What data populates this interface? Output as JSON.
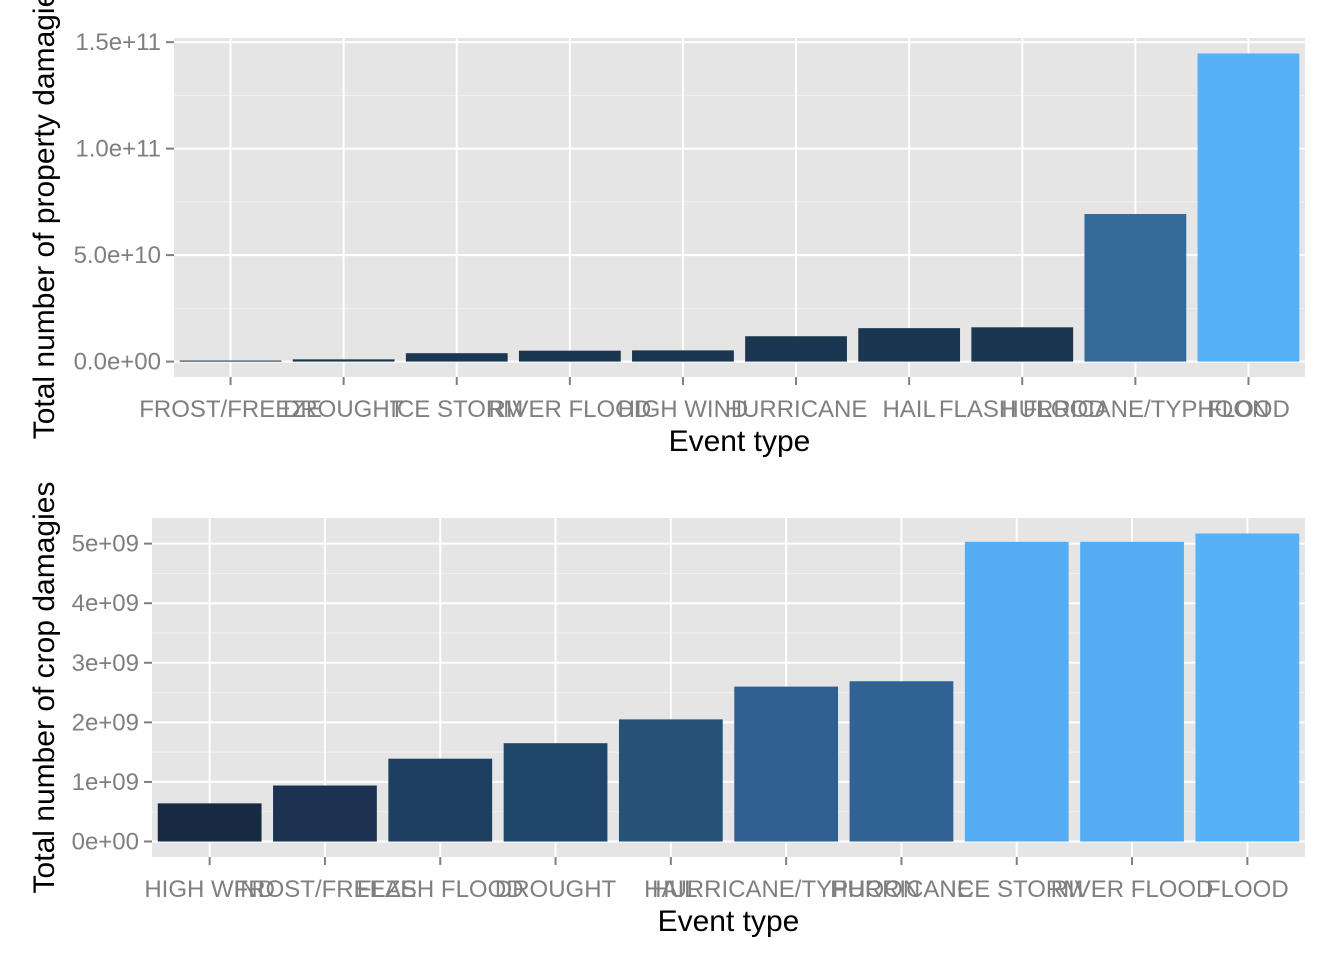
{
  "chart_data": [
    {
      "type": "bar",
      "title": "",
      "xlabel": "Event type",
      "ylabel": "Total number of property damagies",
      "categories": [
        "FROST/FREEZE",
        "DROUGHT",
        "ICE STORM",
        "RIVER FLOOD",
        "HIGH WIND",
        "HURRICANE",
        "HAIL",
        "FLASH FLOOD",
        "HURRICANE/TYPHOON",
        "FLOOD"
      ],
      "values": [
        10000000,
        1050000000,
        3940000000,
        5120000000,
        5270000000,
        11900000000,
        15700000000,
        16100000000,
        69300000000,
        144700000000
      ],
      "colors": [
        "#132B43",
        "#1B3651",
        "#1B3651",
        "#1B3651",
        "#1B3651",
        "#1B3651",
        "#1B3651",
        "#1B3651",
        "#336A98",
        "#56B1F7"
      ],
      "yticks": [
        "0.0e+00",
        "5.0e+10",
        "1.0e+11",
        "1.5e+11"
      ],
      "ytick_values": [
        0,
        50000000000,
        100000000000,
        150000000000
      ],
      "ylim": [
        -7240000000,
        151960000000
      ],
      "grid": true,
      "legend": "none"
    },
    {
      "type": "bar",
      "title": "",
      "xlabel": "Event type",
      "ylabel": "Total number of crop damagies",
      "categories": [
        "HIGH WIND",
        "FROST/FREEZE",
        "FLASH FLOOD",
        "DROUGHT",
        "HAIL",
        "HURRICANE/TYPHOON",
        "HURRICANE",
        "ICE STORM",
        "RIVER FLOOD",
        "FLOOD"
      ],
      "values": [
        640000000,
        940000000,
        1390000000,
        1650000000,
        2050000000,
        2600000000,
        2690000000,
        5030000000,
        5030000000,
        5170000000
      ],
      "colors": [
        "#182A42",
        "#1B3250",
        "#1F3F60",
        "#204669",
        "#265278",
        "#2F6091",
        "#306394",
        "#56ACF0",
        "#56ACF0",
        "#56B1F7"
      ],
      "yticks": [
        "0e+00",
        "1e+09",
        "2e+09",
        "3e+09",
        "4e+09",
        "5e+09"
      ],
      "ytick_values": [
        0,
        1000000000,
        2000000000,
        3000000000,
        4000000000,
        5000000000
      ],
      "ylim": [
        -260000000,
        5430000000
      ],
      "grid": true,
      "legend": "none"
    }
  ]
}
